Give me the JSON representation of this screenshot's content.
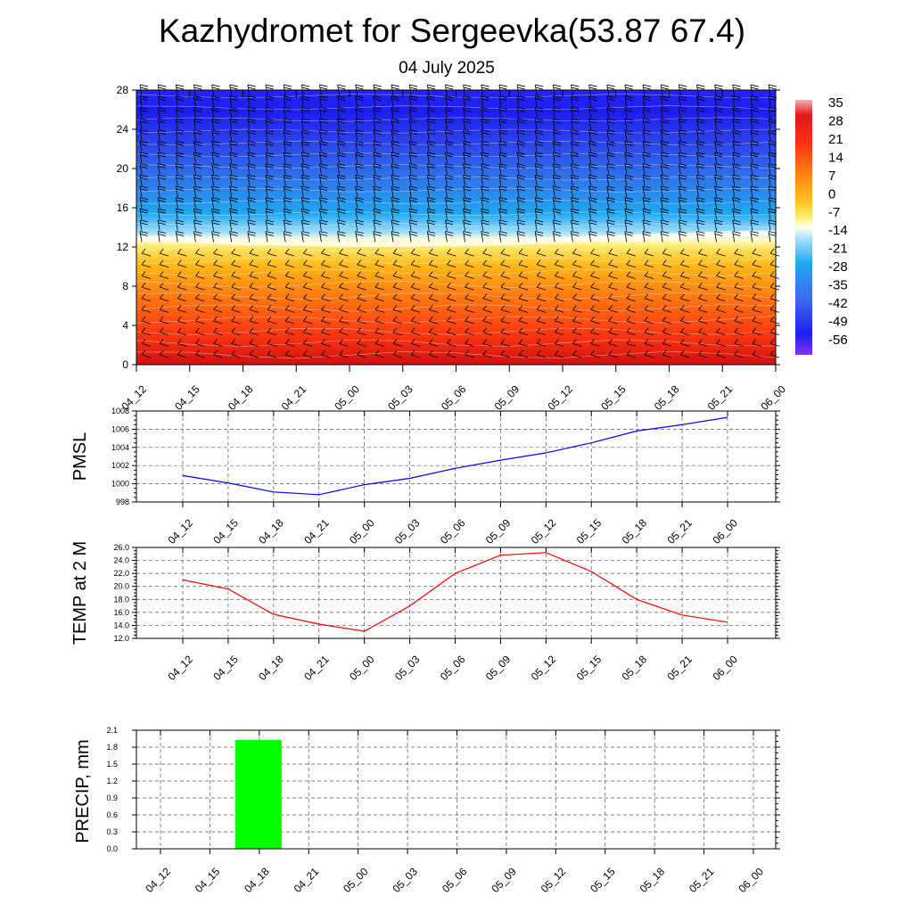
{
  "title": "Kazhydromet for Sergeevka(53.87 67.4)",
  "subtitle": "04 July 2025",
  "colors": {
    "pmsl_line": "#0000ff",
    "temp_line": "#ff0000",
    "precip_bar": "#00ff00",
    "grid": "#555555"
  },
  "time_labels": [
    "04_12",
    "04_15",
    "04_18",
    "04_21",
    "05_00",
    "05_03",
    "05_06",
    "05_09",
    "05_12",
    "05_15",
    "05_18",
    "05_21",
    "06_00"
  ],
  "chart_data": [
    {
      "type": "heatmap",
      "panel": "cross-section",
      "x": [
        "04_12",
        "04_15",
        "04_18",
        "04_21",
        "05_00",
        "05_03",
        "05_06",
        "05_09",
        "05_12",
        "05_15",
        "05_18",
        "05_21",
        "06_00"
      ],
      "yticks": [
        0,
        4,
        8,
        12,
        16,
        20,
        24,
        28
      ],
      "ylim": [
        0,
        28
      ],
      "freezing_level": [
        12.8,
        12.7,
        12.5,
        12.4,
        12.3,
        12.3,
        12.4,
        12.5,
        12.7,
        12.9,
        13.1,
        13.3,
        13.4
      ],
      "colorbar_labels": [
        "35",
        "28",
        "21",
        "14",
        "7",
        "0",
        "-7",
        "-14",
        "-21",
        "-28",
        "-35",
        "-42",
        "-49",
        "-56"
      ],
      "colorbar_range": [
        -60,
        38
      ],
      "overlay": "wind barbs"
    },
    {
      "type": "line",
      "panel": "pmsl",
      "ylabel": "PMSL",
      "x": [
        "04_12",
        "04_15",
        "04_18",
        "04_21",
        "05_00",
        "05_03",
        "05_06",
        "05_09",
        "05_12",
        "05_15",
        "05_18",
        "05_21",
        "06_00"
      ],
      "values": [
        1000.9,
        1000.1,
        999.1,
        998.8,
        999.9,
        1000.6,
        1001.7,
        1002.6,
        1003.4,
        1004.5,
        1005.8,
        1006.5,
        1007.3
      ],
      "ylim": [
        998,
        1008
      ],
      "yticks": [
        "998",
        "1000",
        "1002",
        "1004",
        "1006",
        "1008"
      ],
      "grid": true
    },
    {
      "type": "line",
      "panel": "temp",
      "ylabel": "TEMP at 2 M",
      "x": [
        "04_12",
        "04_15",
        "04_18",
        "04_21",
        "05_00",
        "05_03",
        "05_06",
        "05_09",
        "05_12",
        "05_15",
        "05_18",
        "05_21",
        "06_00"
      ],
      "values": [
        21.0,
        19.6,
        15.7,
        14.2,
        13.1,
        17.0,
        22.0,
        24.8,
        25.2,
        22.3,
        18.0,
        15.6,
        14.5
      ],
      "ylim": [
        12,
        26
      ],
      "yticks": [
        "12.0",
        "14.0",
        "16.0",
        "18.0",
        "20.0",
        "22.0",
        "24.0",
        "26.0"
      ],
      "grid": true
    },
    {
      "type": "bar",
      "panel": "precip",
      "ylabel": "PRECIP, mm",
      "categories": [
        "04_12",
        "04_15",
        "04_18",
        "04_21",
        "05_00",
        "05_03",
        "05_06",
        "05_09",
        "05_12",
        "05_15",
        "05_18",
        "05_21",
        "06_00"
      ],
      "values": [
        0,
        0,
        1.93,
        0,
        0,
        0,
        0,
        0,
        0,
        0,
        0,
        0,
        0
      ],
      "ylim": [
        0,
        2.1
      ],
      "yticks": [
        "0.0",
        "0.3",
        "0.6",
        "0.9",
        "1.2",
        "1.5",
        "1.8",
        "2.1"
      ],
      "grid": true
    }
  ]
}
